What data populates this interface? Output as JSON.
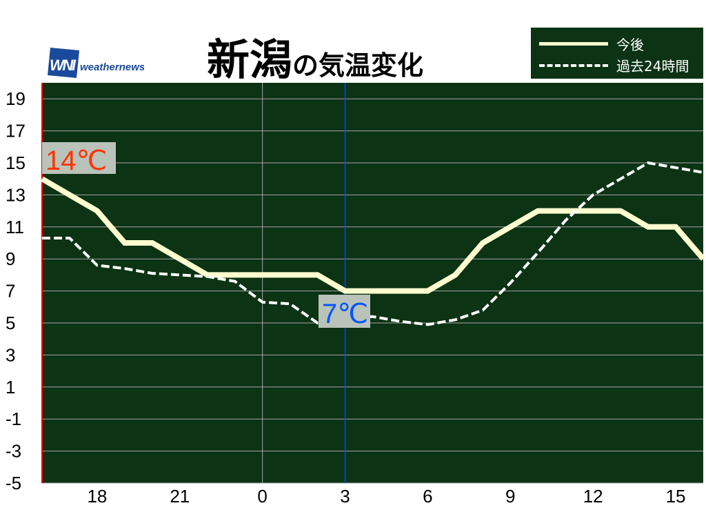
{
  "title": {
    "place": "新潟",
    "suffix": "の気温変化"
  },
  "logo": {
    "mark": "WNI",
    "text": "weathernews"
  },
  "legend": {
    "forecast": "今後",
    "past": "過去24時間"
  },
  "colors": {
    "background": "#0b3314",
    "forecast": "#fffdd0",
    "past": "#ffffff",
    "current_temp": "#ff3300",
    "now_marker": "#0044ff",
    "low_temp": "#0055ff",
    "badge_bg": "#b9c3b9"
  },
  "labels": {
    "current": "14℃",
    "low": "7℃"
  },
  "chart_data": {
    "type": "line",
    "x": [
      16,
      17,
      18,
      19,
      20,
      21,
      22,
      23,
      0,
      1,
      2,
      3,
      4,
      5,
      6,
      7,
      8,
      9,
      10,
      11,
      12,
      13,
      14,
      15,
      16
    ],
    "x_tick_labels": [
      "18",
      "21",
      "0",
      "3",
      "6",
      "9",
      "12",
      "15"
    ],
    "y_tick_labels": [
      "19",
      "17",
      "15",
      "13",
      "11",
      "9",
      "7",
      "5",
      "3",
      "1",
      "-1",
      "-3",
      "-5"
    ],
    "ylim": [
      -5,
      20
    ],
    "grid": true,
    "legend_position": "top-right",
    "now_hour": 3,
    "series": [
      {
        "name": "今後",
        "style": "solid",
        "values": [
          14,
          13,
          12,
          10,
          10,
          9,
          8,
          8,
          8,
          8,
          8,
          7,
          7,
          7,
          7,
          8,
          10,
          11,
          12,
          12,
          12,
          12,
          11,
          11,
          9
        ]
      },
      {
        "name": "過去24時間",
        "style": "dashed",
        "values": [
          10.3,
          10.3,
          8.6,
          8.4,
          8.1,
          8.0,
          7.9,
          7.6,
          6.3,
          6.2,
          5.0,
          5.3,
          5.4,
          5.1,
          4.9,
          5.2,
          5.8,
          7.5,
          9.4,
          11.4,
          13.0,
          14.0,
          15.0,
          14.7,
          14.4
        ]
      }
    ],
    "annotations": [
      {
        "text": "14℃",
        "hour_index": 0
      },
      {
        "text": "7℃",
        "hour_index": 11
      }
    ]
  }
}
